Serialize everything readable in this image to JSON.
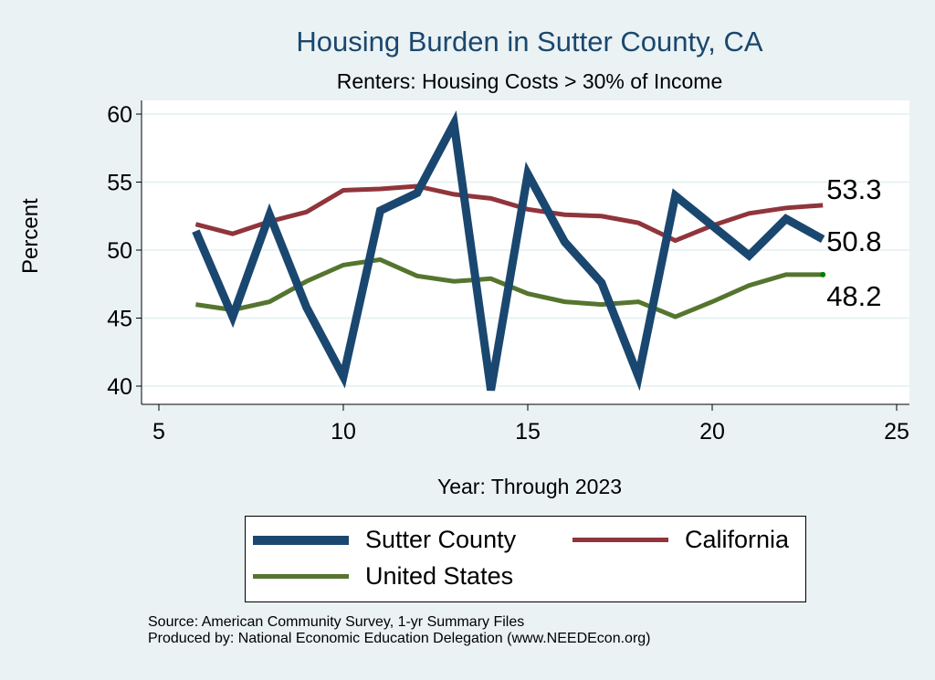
{
  "chart_data": {
    "type": "line",
    "title": "Housing Burden in Sutter County, CA",
    "subtitle": "Renters: Housing Costs > 30% of Income",
    "xlabel": "Year: Through 2023",
    "ylabel": "Percent",
    "xlim": [
      5,
      25
    ],
    "ylim": [
      40,
      60
    ],
    "xticks": [
      "5",
      "10",
      "15",
      "20",
      "25"
    ],
    "yticks": [
      "40",
      "45",
      "50",
      "55",
      "60"
    ],
    "grid": true,
    "x": [
      6,
      7,
      8,
      9,
      10,
      11,
      12,
      13,
      14,
      15,
      16,
      17,
      18,
      19,
      20,
      21,
      22,
      23
    ],
    "series": [
      {
        "name": "Sutter County",
        "color": "#1a476f",
        "values": [
          51.4,
          45.1,
          52.6,
          45.8,
          40.7,
          52.9,
          54.2,
          59.3,
          39.7,
          55.6,
          50.6,
          47.6,
          40.7,
          54.0,
          51.8,
          49.6,
          52.3,
          50.8
        ],
        "end_label": "50.8"
      },
      {
        "name": "California",
        "color": "#90353b",
        "values": [
          51.9,
          51.2,
          52.1,
          52.8,
          54.4,
          54.5,
          54.7,
          54.1,
          53.8,
          53.0,
          52.6,
          52.5,
          52.0,
          50.7,
          51.8,
          52.7,
          53.1,
          53.3
        ],
        "end_label": "53.3"
      },
      {
        "name": "United States",
        "color": "#55752f",
        "values": [
          46.0,
          45.6,
          46.2,
          47.7,
          48.9,
          49.3,
          48.1,
          47.7,
          47.9,
          46.8,
          46.2,
          46.0,
          46.2,
          45.1,
          46.2,
          47.4,
          48.2,
          48.2
        ],
        "end_label": "48.2"
      }
    ],
    "legend_position": "bottom"
  },
  "source": {
    "line1": "Source: American Community Survey, 1-yr Summary Files",
    "line2": "Produced by: National Economic Education Delegation (www.NEEDEcon.org)"
  }
}
